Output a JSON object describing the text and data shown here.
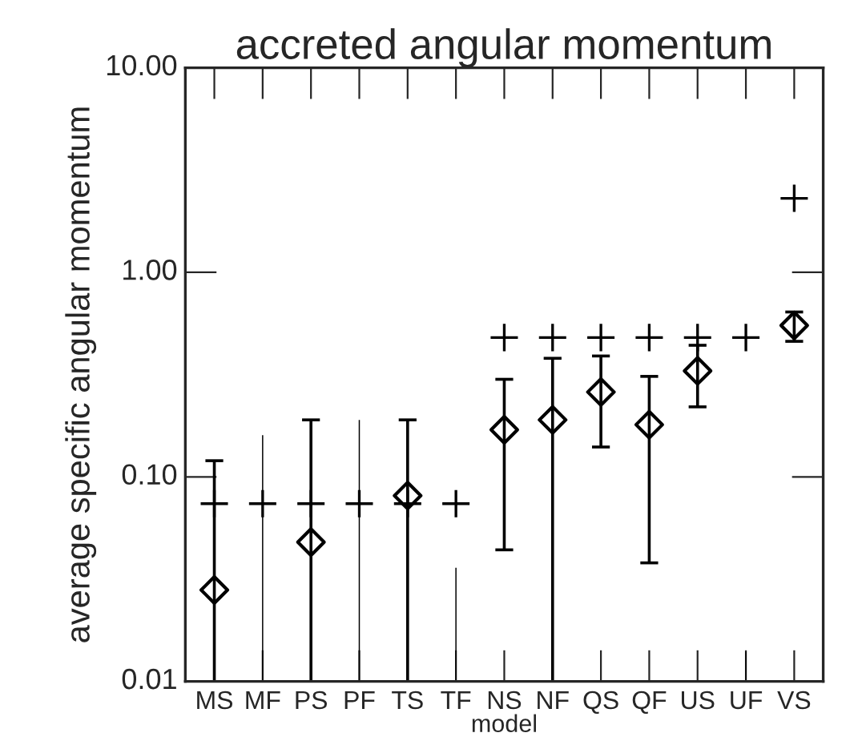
{
  "chart_data": {
    "type": "scatter",
    "title": "accreted angular momentum",
    "xlabel": "model",
    "ylabel": "average specific angular momentum",
    "categories": [
      "MS",
      "MF",
      "PS",
      "PF",
      "TS",
      "TF",
      "NS",
      "NF",
      "QS",
      "QF",
      "US",
      "UF",
      "VS"
    ],
    "series": [
      {
        "marker": "diamond",
        "color": "#000000",
        "values": [
          0.028,
          null,
          0.048,
          null,
          0.081,
          null,
          0.17,
          0.19,
          0.26,
          0.18,
          0.33,
          null,
          0.55
        ],
        "errors": [
          [
            0.01,
            0.12
          ],
          null,
          [
            0.01,
            0.19
          ],
          null,
          [
            0.01,
            0.19
          ],
          null,
          [
            0.044,
            0.3
          ],
          [
            0.01,
            0.38
          ],
          [
            0.14,
            0.39
          ],
          [
            0.038,
            0.31
          ],
          [
            0.22,
            0.44
          ],
          null,
          [
            0.46,
            0.64
          ]
        ]
      },
      {
        "marker": "cross",
        "color": "#000000",
        "values": [
          0.074,
          0.074,
          0.074,
          0.074,
          0.074,
          0.074,
          0.48,
          0.48,
          0.48,
          0.48,
          0.48,
          0.48,
          2.3
        ]
      },
      {
        "type": "bar",
        "color": "#000000",
        "base": [
          null,
          0.01,
          null,
          0.01,
          null,
          0.01,
          null,
          null,
          null,
          null,
          null,
          0.01,
          null
        ],
        "values": [
          null,
          0.15,
          null,
          0.18,
          null,
          0.026,
          null,
          null,
          null,
          null,
          null,
          0.004,
          null
        ]
      }
    ],
    "log": "y",
    "ylim": [
      0.01,
      10
    ],
    "yticks": [
      {
        "value": 0.01,
        "label": "0.01"
      },
      {
        "value": 0.1,
        "label": "0.10"
      },
      {
        "value": 1,
        "label": "1.00"
      },
      {
        "value": 10,
        "label": "10.00"
      }
    ],
    "grid": false,
    "legend": false
  }
}
